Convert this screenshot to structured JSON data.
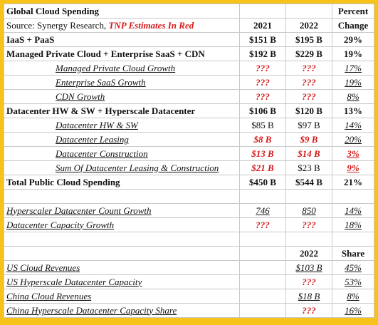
{
  "title": "Global Cloud Spending",
  "source_prefix": "Source: Synergy Research, ",
  "source_estimates": "TNP Estimates In Red",
  "header": {
    "percent": "Percent",
    "col2021": "2021",
    "col2022": "2022",
    "change": "Change"
  },
  "rows": [
    {
      "label": "IaaS + PaaS",
      "y2021": "$151 B",
      "y2022": "$195 B",
      "change": "29%"
    },
    {
      "label": "Managed Private Cloud + Enterprise SaaS + CDN",
      "y2021": "$192 B",
      "y2022": "$229 B",
      "change": "19%"
    },
    {
      "label": "Managed Private Cloud Growth",
      "y2021": "???",
      "y2022": "???",
      "change": "17%"
    },
    {
      "label": "Enterprise SaaS Growth",
      "y2021": "???",
      "y2022": "???",
      "change": "19%"
    },
    {
      "label": "CDN Growth",
      "y2021": "???",
      "y2022": "???",
      "change": "8%"
    },
    {
      "label": "Datacenter HW & SW + Hyperscale Datacenter",
      "y2021": "$106 B",
      "y2022": "$120 B",
      "change": "13%"
    },
    {
      "label": "Datacenter HW & SW",
      "y2021": "$85 B",
      "y2022": "$97 B",
      "change": "14%"
    },
    {
      "label": "Datacenter Leasing",
      "y2021": "$8 B",
      "y2022": "$9 B",
      "change": "20%"
    },
    {
      "label": "Datacenter Construction",
      "y2021": "$13 B",
      "y2022": "$14 B",
      "change": "3%"
    },
    {
      "label": "Sum Of Datacenter Leasing & Construction",
      "y2021": "$21 B",
      "y2022": "$23 B",
      "change": "9%"
    },
    {
      "label": "Total Public Cloud Spending",
      "y2021": "$450 B",
      "y2022": "$544 B",
      "change": "21%"
    }
  ],
  "growth_rows": [
    {
      "label": "Hyperscaler Datacenter Count Growth",
      "y2021": "746",
      "y2022": "850",
      "change": "14%"
    },
    {
      "label": "Datacenter Capacity Growth",
      "y2021": "???",
      "y2022": "???",
      "change": "18%"
    }
  ],
  "share_header": {
    "year": "2022",
    "share": "Share"
  },
  "share_rows": [
    {
      "label": "US Cloud Revenues",
      "y2022": "$103 B",
      "share": "45%"
    },
    {
      "label": "US Hyperscale Datacenter Capacity",
      "y2022": "???",
      "share": "53%"
    },
    {
      "label": "China Cloud Revenues",
      "y2022": "$18 B",
      "share": "8%"
    },
    {
      "label": "China Hyperscale Datacenter Capacity Share",
      "y2022": "???",
      "share": "16%"
    }
  ],
  "colors": {
    "frame": "#f7c21a",
    "estimate": "#d41a1a"
  }
}
